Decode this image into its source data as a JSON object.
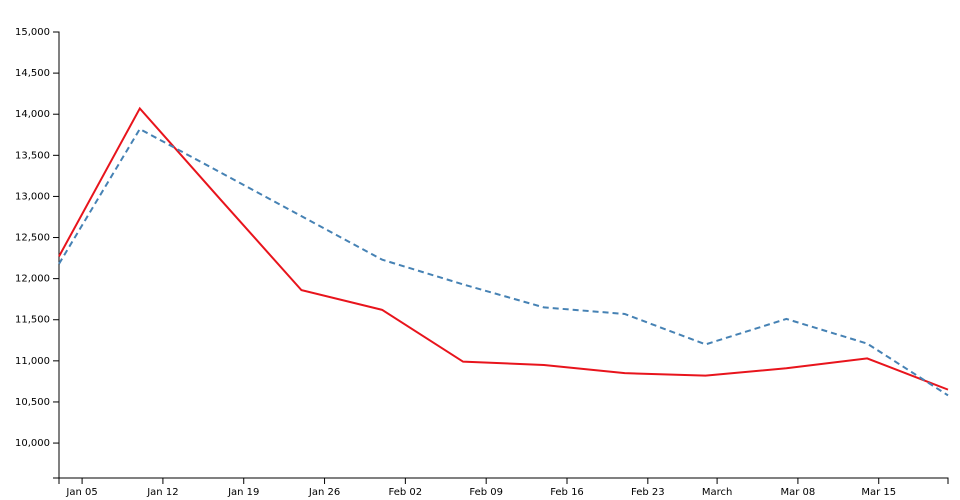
{
  "chart_data": {
    "type": "line",
    "x": [
      "Jan 03",
      "Jan 10",
      "Jan 17",
      "Jan 24",
      "Jan 31",
      "Feb 07",
      "Feb 14",
      "Feb 21",
      "Feb 28",
      "Mar 07",
      "Mar 14",
      "Mar 21"
    ],
    "series": [
      {
        "color": "#e8141c",
        "dashed": false,
        "values": [
          12270,
          14070,
          12960,
          11860,
          11620,
          10990,
          10950,
          10850,
          10820,
          10910,
          11030,
          10650
        ]
      },
      {
        "color": "#4682b4",
        "dashed": true,
        "values": [
          12180,
          13820,
          13290,
          12760,
          12230,
          11930,
          11650,
          11570,
          11200,
          11510,
          11210,
          10580
        ]
      }
    ],
    "xlim": [
      "Jan 03",
      "Mar 21"
    ],
    "xticks": [
      "Jan 05",
      "Jan 12",
      "Jan 19",
      "Jan 26",
      "Feb 02",
      "Feb 09",
      "Feb 16",
      "Feb 23",
      {
        "value": "Mar 01",
        "label": "March"
      },
      "Mar 08",
      "Mar 15"
    ],
    "ylim": [
      9575,
      15000
    ],
    "yticks": [
      {
        "value": 10000,
        "label": "10,000"
      },
      {
        "value": 10500,
        "label": "10,500"
      },
      {
        "value": 11000,
        "label": "11,000"
      },
      {
        "value": 11500,
        "label": "11,500"
      },
      {
        "value": 12000,
        "label": "12,000"
      },
      {
        "value": 12500,
        "label": "12,500"
      },
      {
        "value": 13000,
        "label": "13,000"
      },
      {
        "value": 13500,
        "label": "13,500"
      },
      {
        "value": 14000,
        "label": "14,000"
      },
      {
        "value": 14500,
        "label": "14,500"
      },
      {
        "value": 15000,
        "label": "15,000"
      }
    ]
  }
}
